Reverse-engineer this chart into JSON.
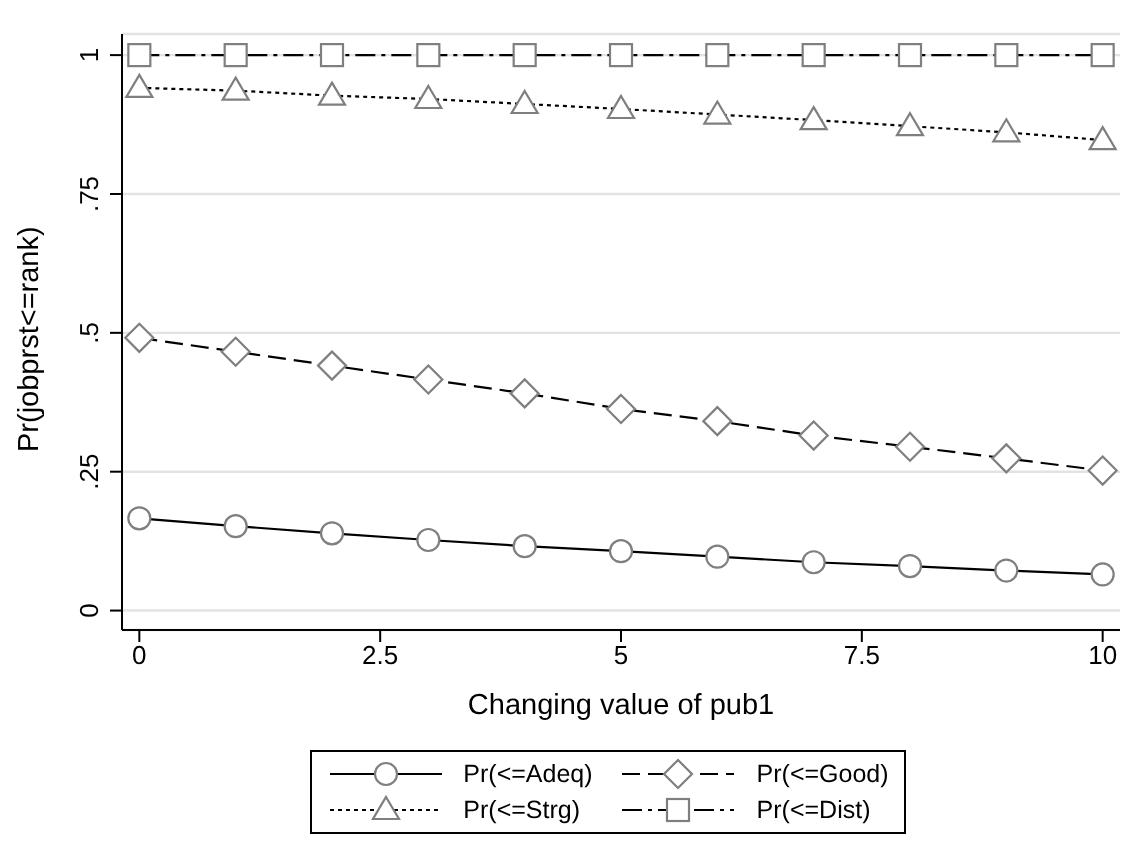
{
  "chart_data": {
    "type": "line",
    "xlabel": "Changing value of pub1",
    "ylabel": "Pr(jobprst<=rank)",
    "x": [
      0,
      1,
      2,
      3,
      4,
      5,
      6,
      7,
      8,
      9,
      10
    ],
    "series": [
      {
        "name": "Pr(<=Adeq)",
        "color": "#000000",
        "marker": "circle",
        "line_style": "solid",
        "values": [
          0.166,
          0.152,
          0.139,
          0.127,
          0.116,
          0.107,
          0.097,
          0.087,
          0.08,
          0.072,
          0.065
        ]
      },
      {
        "name": "Pr(<=Good)",
        "color": "#000000",
        "marker": "diamond",
        "line_style": "dashed",
        "values": [
          0.491,
          0.466,
          0.441,
          0.416,
          0.391,
          0.363,
          0.341,
          0.315,
          0.295,
          0.274,
          0.252
        ]
      },
      {
        "name": "Pr(<=Strg)",
        "color": "#000000",
        "marker": "triangle",
        "line_style": "dotted",
        "values": [
          0.941,
          0.936,
          0.927,
          0.921,
          0.912,
          0.903,
          0.893,
          0.883,
          0.872,
          0.861,
          0.847
        ]
      },
      {
        "name": "Pr(<=Dist)",
        "color": "#000000",
        "marker": "square",
        "line_style": "dashdot",
        "values": [
          1,
          1,
          1,
          1,
          1,
          1,
          1,
          1,
          1,
          1,
          1
        ]
      }
    ],
    "xlim": [
      -0.18,
      10.18
    ],
    "xticks": [
      0,
      2.5,
      5,
      7.5,
      10
    ],
    "ylim": [
      -0.035,
      1.038
    ],
    "yticks": [
      {
        "value": 0,
        "label": "0"
      },
      {
        "value": 0.25,
        "label": ".25"
      },
      {
        "value": 0.5,
        "label": ".5"
      },
      {
        "value": 0.75,
        "label": ".75"
      },
      {
        "value": 1,
        "label": "1"
      }
    ],
    "grid": "y",
    "legend": "bottom"
  }
}
